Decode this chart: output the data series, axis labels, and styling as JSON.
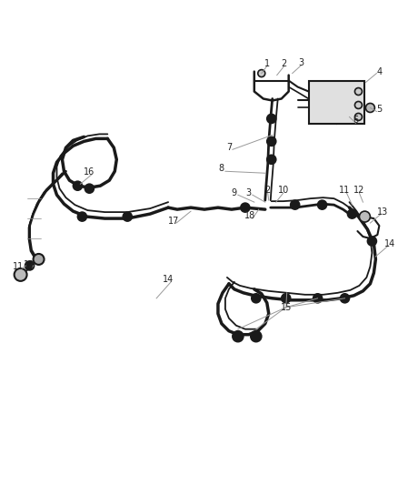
{
  "bg_color": "#ffffff",
  "line_color": "#1a1a1a",
  "callout_color": "#222222",
  "leader_color": "#999999",
  "fig_width": 4.38,
  "fig_height": 5.33,
  "dpi": 100
}
